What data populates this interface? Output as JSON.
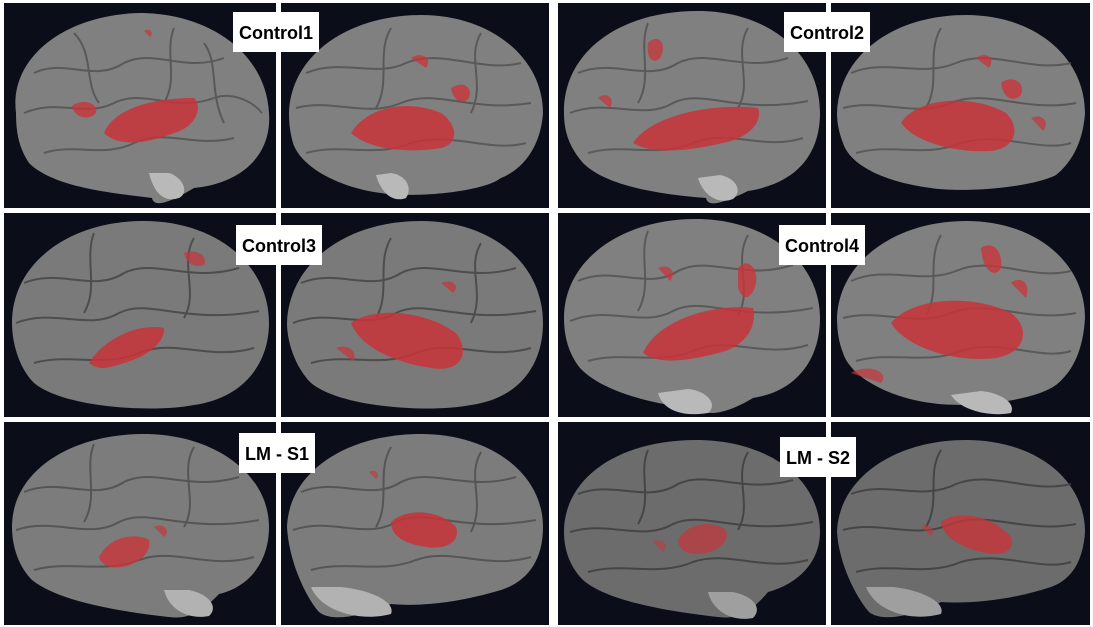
{
  "subjects": [
    {
      "label": "Control1"
    },
    {
      "label": "Control2"
    },
    {
      "label": "Control3"
    },
    {
      "label": "Control4"
    },
    {
      "label": "LM - S1"
    },
    {
      "label": "LM - S2"
    }
  ],
  "colors": {
    "background": "#000000",
    "brain_fill": "#7d7d7d",
    "brain_gyri": "#4a4a4a",
    "activation": "#c8343a"
  }
}
